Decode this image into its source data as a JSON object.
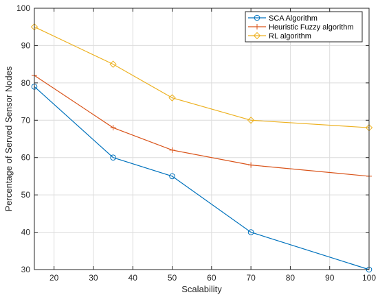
{
  "chart_data": {
    "type": "line",
    "title": "",
    "xlabel": "Scalability",
    "ylabel": "Percentage of Served Sensor Nodes",
    "xlim": [
      15,
      100
    ],
    "ylim": [
      30,
      100
    ],
    "xticks": [
      20,
      30,
      40,
      50,
      60,
      70,
      80,
      90,
      100
    ],
    "yticks": [
      30,
      40,
      50,
      60,
      70,
      80,
      90,
      100
    ],
    "grid": true,
    "legend_position": "top-right",
    "x": [
      15,
      35,
      50,
      70,
      100
    ],
    "series": [
      {
        "name": "SCA Algorithm",
        "color": "#0072BD",
        "marker": "circle",
        "values": [
          79,
          60,
          55,
          40,
          30
        ]
      },
      {
        "name": "Heuristic Fuzzy algorithm",
        "color": "#D95319",
        "marker": "plus",
        "values": [
          82,
          68,
          62,
          58,
          55
        ]
      },
      {
        "name": "RL algorithm",
        "color": "#EDB120",
        "marker": "diamond",
        "values": [
          95,
          85,
          76,
          70,
          68
        ]
      }
    ]
  }
}
